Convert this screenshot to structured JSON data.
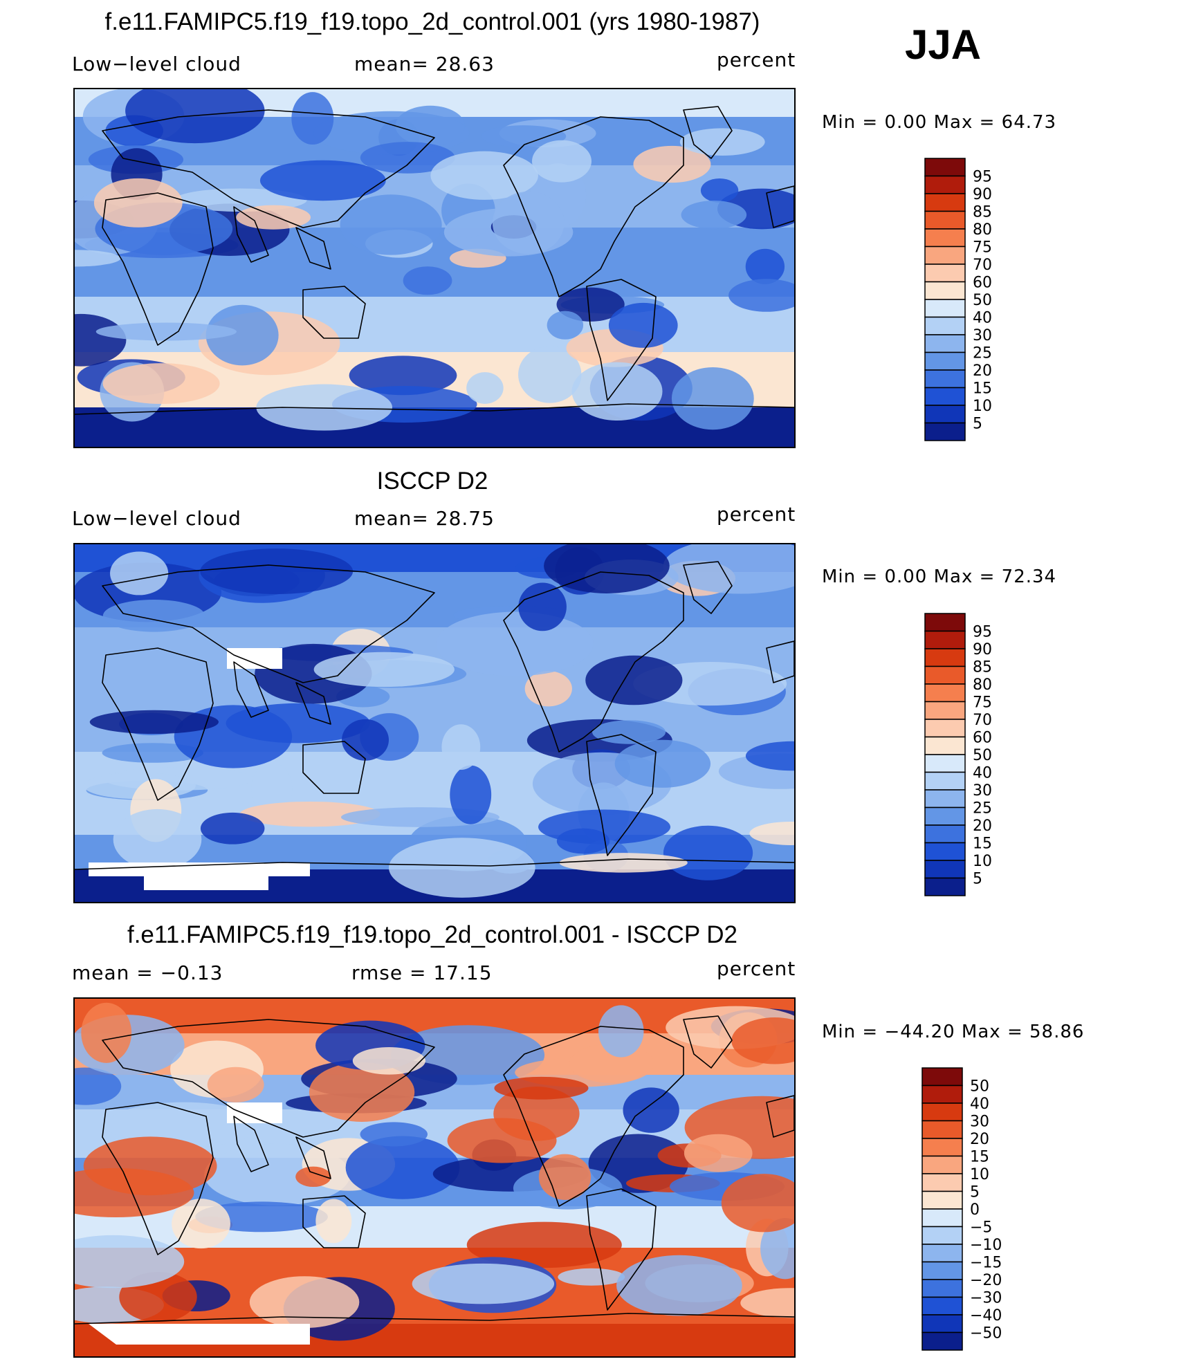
{
  "season": "JJA",
  "panels": [
    {
      "title": "f.e11.FAMIPC5.f19_f19.topo_2d_control.001 (yrs 1980-1987)",
      "left": "Low−level cloud",
      "middle": "mean=   28.63",
      "right": "percent",
      "minmax": "Min =     0.00 Max =    64.73",
      "colorbar": [
        "95",
        "90",
        "85",
        "80",
        "75",
        "70",
        "60",
        "50",
        "40",
        "30",
        "25",
        "20",
        "15",
        "10",
        "5"
      ],
      "palette": [
        "#7d0a0a",
        "#b01c0c",
        "#d73a10",
        "#e95a2a",
        "#f57f4e",
        "#f9a67f",
        "#fccbb0",
        "#fbe6d2",
        "#d8e9fa",
        "#b3d1f5",
        "#8db5ee",
        "#6396e6",
        "#3d72de",
        "#1f52d5",
        "#1036b8",
        "#0b1f8c"
      ],
      "field": "model"
    },
    {
      "title": "ISCCP D2",
      "left": "Low−level cloud",
      "middle": "mean=   28.75",
      "right": "percent",
      "minmax": "Min =     0.00 Max =    72.34",
      "colorbar": [
        "95",
        "90",
        "85",
        "80",
        "75",
        "70",
        "60",
        "50",
        "40",
        "30",
        "25",
        "20",
        "15",
        "10",
        "5"
      ],
      "palette": [
        "#7d0a0a",
        "#b01c0c",
        "#d73a10",
        "#e95a2a",
        "#f57f4e",
        "#f9a67f",
        "#fccbb0",
        "#fbe6d2",
        "#d8e9fa",
        "#b3d1f5",
        "#8db5ee",
        "#6396e6",
        "#3d72de",
        "#1f52d5",
        "#1036b8",
        "#0b1f8c"
      ],
      "field": "obs"
    },
    {
      "title": "f.e11.FAMIPC5.f19_f19.topo_2d_control.001 - ISCCP D2",
      "left": "mean =   −0.13",
      "middle": "rmse =   17.15",
      "right": "percent",
      "minmax": "Min = −44.20 Max =   58.86",
      "colorbar": [
        "50",
        "40",
        "30",
        "20",
        "15",
        "10",
        "5",
        "0",
        "−5",
        "−10",
        "−15",
        "−20",
        "−30",
        "−40",
        "−50"
      ],
      "palette": [
        "#7d0a0a",
        "#b01c0c",
        "#d73a10",
        "#e95a2a",
        "#f57f4e",
        "#f9a67f",
        "#fccbb0",
        "#fbe6d2",
        "#d8e9fa",
        "#b3d1f5",
        "#8db5ee",
        "#6396e6",
        "#3d72de",
        "#1f52d5",
        "#1036b8",
        "#0b1f8c"
      ],
      "field": "diff"
    }
  ]
}
